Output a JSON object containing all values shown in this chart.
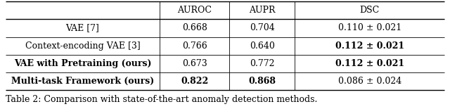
{
  "figsize": [
    6.4,
    1.55
  ],
  "dpi": 100,
  "background": "#ffffff",
  "caption": "Table 2: Comparison with state-of-the-art anomaly detection methods.",
  "caption_fontsize": 9.0,
  "headers": [
    "",
    "AUROC",
    "AUPR",
    "DSC"
  ],
  "rows": [
    {
      "label": "VAE [7]",
      "label_bold": false,
      "auroc": "0.668",
      "auroc_bold": false,
      "aupr": "0.704",
      "aupr_bold": false,
      "dsc": "0.110 ± 0.021",
      "dsc_bold": false
    },
    {
      "label": "Context-encoding VAE [3]",
      "label_bold": false,
      "auroc": "0.766",
      "auroc_bold": false,
      "aupr": "0.640",
      "aupr_bold": false,
      "dsc": "0.112 ± 0.021",
      "dsc_bold": true
    },
    {
      "label": "VAE with Pretraining (ours)",
      "label_bold": true,
      "auroc": "0.673",
      "auroc_bold": false,
      "aupr": "0.772",
      "aupr_bold": false,
      "dsc": "0.112 ± 0.021",
      "dsc_bold": true
    },
    {
      "label": "Multi-task Framework (ours)",
      "label_bold": true,
      "auroc": "0.822",
      "auroc_bold": true,
      "aupr": "0.868",
      "aupr_bold": true,
      "dsc": "0.086 ± 0.024",
      "dsc_bold": false
    }
  ],
  "table_fontsize": 9.0,
  "line_color": "#000000",
  "thick_lw": 1.0,
  "thin_lw": 0.6
}
